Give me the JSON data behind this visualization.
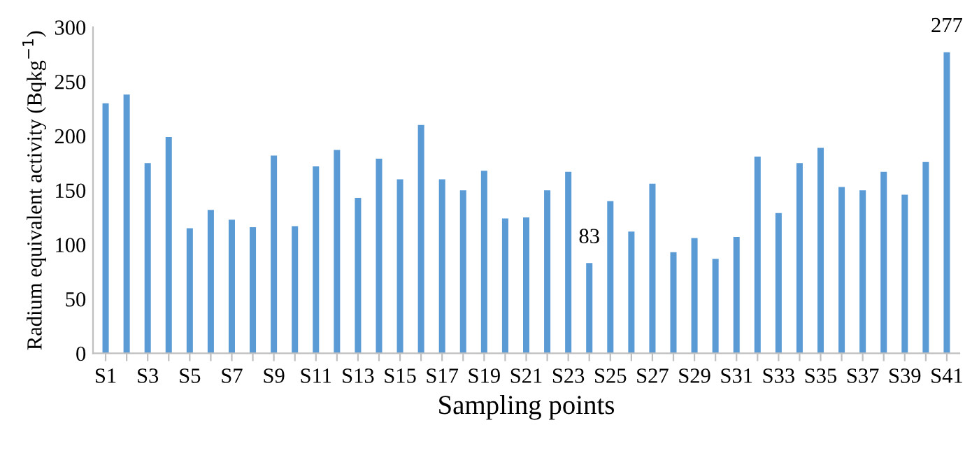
{
  "chart_data": {
    "type": "bar",
    "xlabel": "Sampling points",
    "ylabel": "Radium equivalent activity (Bqkg$^{−1}$)",
    "categories": [
      "S1",
      null,
      "S3",
      null,
      "S5",
      null,
      "S7",
      null,
      "S9",
      null,
      "S11",
      null,
      "S13",
      null,
      "S15",
      null,
      "S17",
      null,
      "S19",
      null,
      "S21",
      null,
      "S23",
      null,
      "S25",
      null,
      "S27",
      null,
      "S29",
      null,
      "S31",
      null,
      "S33",
      null,
      "S35",
      null,
      "S37",
      null,
      "S39",
      null,
      "S41"
    ],
    "values": [
      230,
      238,
      175,
      199,
      115,
      132,
      123,
      116,
      182,
      117,
      172,
      187,
      143,
      179,
      160,
      210,
      160,
      150,
      168,
      124,
      125,
      150,
      167,
      83,
      140,
      112,
      156,
      93,
      106,
      87,
      107,
      181,
      129,
      175,
      189,
      153,
      150,
      167,
      146,
      176,
      277
    ],
    "value_labels": [
      null,
      null,
      null,
      null,
      null,
      null,
      null,
      null,
      null,
      null,
      null,
      null,
      null,
      null,
      null,
      null,
      null,
      null,
      null,
      null,
      null,
      null,
      null,
      "83",
      null,
      null,
      null,
      null,
      null,
      null,
      null,
      null,
      null,
      null,
      null,
      null,
      null,
      null,
      null,
      null,
      "277"
    ],
    "color": "#5b9bd5",
    "ylim": [
      0,
      300
    ],
    "yticks": [
      0,
      50,
      100,
      150,
      200,
      250,
      300
    ],
    "grid": false,
    "legend": false
  }
}
